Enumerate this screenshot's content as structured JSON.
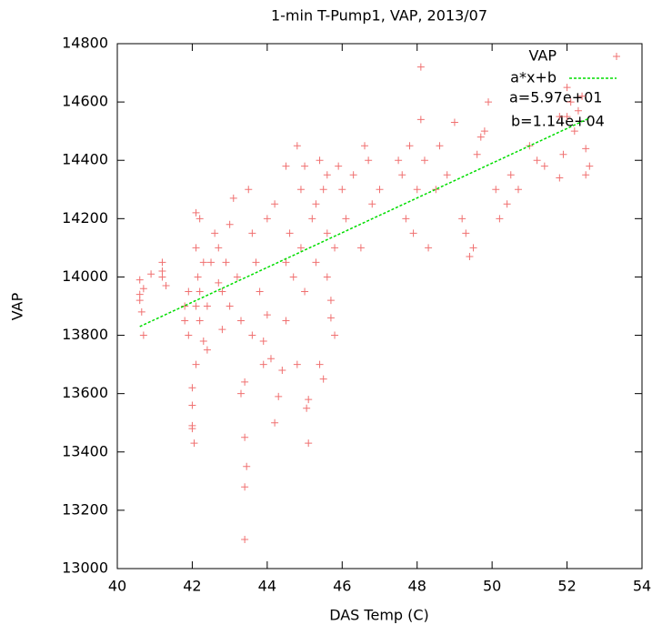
{
  "chart_data": {
    "type": "scatter",
    "title": "1-min T-Pump1, VAP, 2013/07",
    "xlabel": "DAS Temp (C)",
    "ylabel": "VAP",
    "xlim": [
      40,
      54
    ],
    "ylim": [
      13000,
      14800
    ],
    "xticks": [
      40,
      42,
      44,
      46,
      48,
      50,
      52,
      54
    ],
    "yticks": [
      13000,
      13200,
      13400,
      13600,
      13800,
      14000,
      14200,
      14400,
      14600,
      14800
    ],
    "legend": "upper right",
    "annotations": [
      "a=5.97e+01",
      "b=1.14e+04"
    ],
    "series": [
      {
        "name": "VAP",
        "type": "scatter",
        "color": "#f07070",
        "x": [
          40.6,
          40.6,
          40.65,
          40.7,
          40.6,
          40.7,
          40.9,
          41.2,
          41.2,
          41.3,
          41.2,
          41.8,
          41.8,
          41.9,
          41.9,
          42.0,
          42.0,
          42.0,
          42.05,
          42.0,
          42.1,
          42.1,
          42.2,
          42.1,
          42.15,
          42.2,
          42.1,
          42.2,
          42.3,
          42.3,
          42.4,
          42.4,
          42.5,
          42.6,
          42.7,
          42.7,
          42.8,
          42.8,
          42.9,
          43.0,
          43.0,
          43.1,
          43.2,
          43.3,
          43.3,
          43.4,
          43.4,
          43.45,
          43.4,
          43.4,
          43.5,
          43.6,
          43.6,
          43.7,
          43.8,
          43.9,
          43.9,
          44.0,
          44.0,
          44.1,
          44.2,
          44.2,
          44.3,
          44.4,
          44.5,
          44.5,
          44.5,
          44.6,
          44.7,
          44.8,
          44.8,
          44.9,
          44.9,
          45.0,
          45.0,
          45.05,
          45.1,
          45.1,
          45.2,
          45.3,
          45.3,
          45.4,
          45.4,
          45.5,
          45.5,
          45.6,
          45.6,
          45.6,
          45.7,
          45.7,
          45.8,
          45.8,
          45.9,
          46.0,
          46.1,
          46.3,
          46.5,
          46.6,
          46.7,
          46.8,
          47.0,
          47.5,
          47.6,
          47.7,
          47.8,
          47.9,
          48.0,
          48.1,
          48.1,
          48.2,
          48.3,
          48.5,
          48.6,
          48.8,
          49.0,
          49.2,
          49.3,
          49.4,
          49.5,
          49.6,
          49.7,
          49.8,
          49.9,
          50.1,
          50.2,
          50.4,
          50.5,
          50.7,
          51.0,
          51.2,
          51.4,
          51.8,
          51.9,
          52.0,
          52.0,
          52.1,
          52.2,
          52.3,
          52.4,
          52.5,
          52.5,
          52.6,
          51.8
        ],
        "values": [
          13940,
          13920,
          13880,
          13800,
          13990,
          13960,
          14010,
          14050,
          14000,
          13970,
          14020,
          13850,
          13900,
          13950,
          13800,
          13620,
          13560,
          13490,
          13430,
          13480,
          13700,
          14220,
          14200,
          14100,
          14000,
          13950,
          13900,
          13850,
          14050,
          13780,
          13750,
          13900,
          14050,
          14150,
          14100,
          13980,
          13950,
          13820,
          14050,
          14180,
          13900,
          14270,
          14000,
          13850,
          13600,
          13100,
          13280,
          13350,
          13450,
          13640,
          14300,
          14150,
          13800,
          14050,
          13950,
          13780,
          13700,
          14200,
          13870,
          13720,
          14250,
          13500,
          13590,
          13680,
          14380,
          14050,
          13850,
          14150,
          14000,
          14450,
          13700,
          14300,
          14100,
          14380,
          13950,
          13550,
          13580,
          13430,
          14200,
          14050,
          14250,
          14400,
          13700,
          13650,
          14300,
          14350,
          14000,
          14150,
          13920,
          13860,
          13800,
          14100,
          14380,
          14300,
          14200,
          14350,
          14100,
          14450,
          14400,
          14250,
          14300,
          14400,
          14350,
          14200,
          14450,
          14150,
          14300,
          14720,
          14540,
          14400,
          14100,
          14300,
          14450,
          14350,
          14530,
          14200,
          14150,
          14070,
          14100,
          14420,
          14480,
          14500,
          14600,
          14300,
          14200,
          14250,
          14350,
          14300,
          14450,
          14400,
          14380,
          14340,
          14420,
          14550,
          14650,
          14600,
          14500,
          14570,
          14620,
          14440,
          14350,
          14380,
          14550
        ]
      },
      {
        "name": "a*x+b",
        "type": "line",
        "color": "#00dd00",
        "x": [
          40.6,
          52.6
        ],
        "values": [
          13830,
          14545
        ]
      }
    ]
  }
}
